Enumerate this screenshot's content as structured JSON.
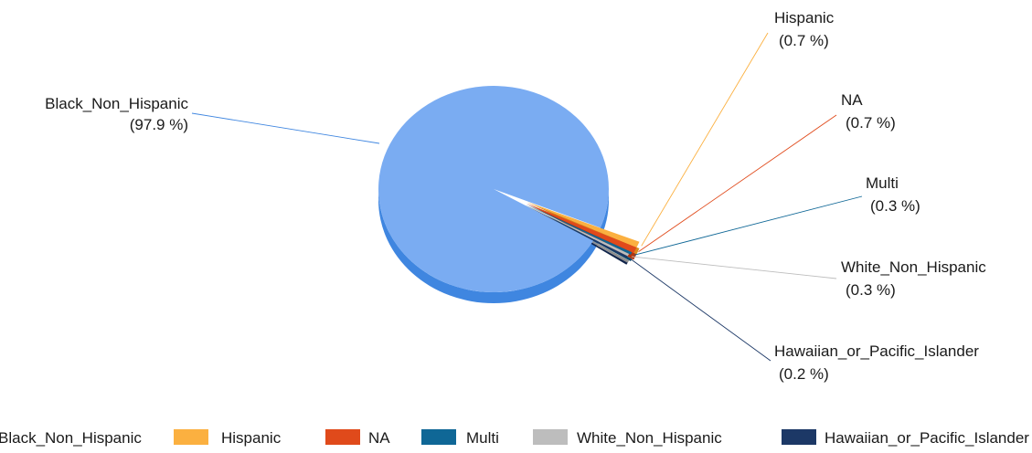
{
  "chart_data": {
    "type": "pie",
    "style": "3d-exploded",
    "title": "",
    "slices": [
      {
        "label": "Black_Non_Hispanic",
        "percent": 97.9,
        "percent_label": "(97.9 %)",
        "color": "#7aacf2",
        "side_color": "#3f86e0"
      },
      {
        "label": "Hispanic",
        "percent": 0.7,
        "percent_label": "(0.7 %)",
        "color": "#fbb040",
        "side_color": "#d98b1c"
      },
      {
        "label": "NA",
        "percent": 0.7,
        "percent_label": "(0.7 %)",
        "color": "#e04a1b",
        "side_color": "#b3340d"
      },
      {
        "label": "Multi",
        "percent": 0.3,
        "percent_label": "(0.3 %)",
        "color": "#0f6796",
        "side_color": "#0a4a6e"
      },
      {
        "label": "White_Non_Hispanic",
        "percent": 0.3,
        "percent_label": "(0.3 %)",
        "color": "#bdbdbd",
        "side_color": "#8f8f8f"
      },
      {
        "label": "Hawaiian_or_Pacific_Islander",
        "percent": 0.2,
        "percent_label": "(0.2 %)",
        "color": "#1c3866",
        "side_color": "#10244a"
      }
    ],
    "legend": {
      "placement": "bottom"
    }
  }
}
